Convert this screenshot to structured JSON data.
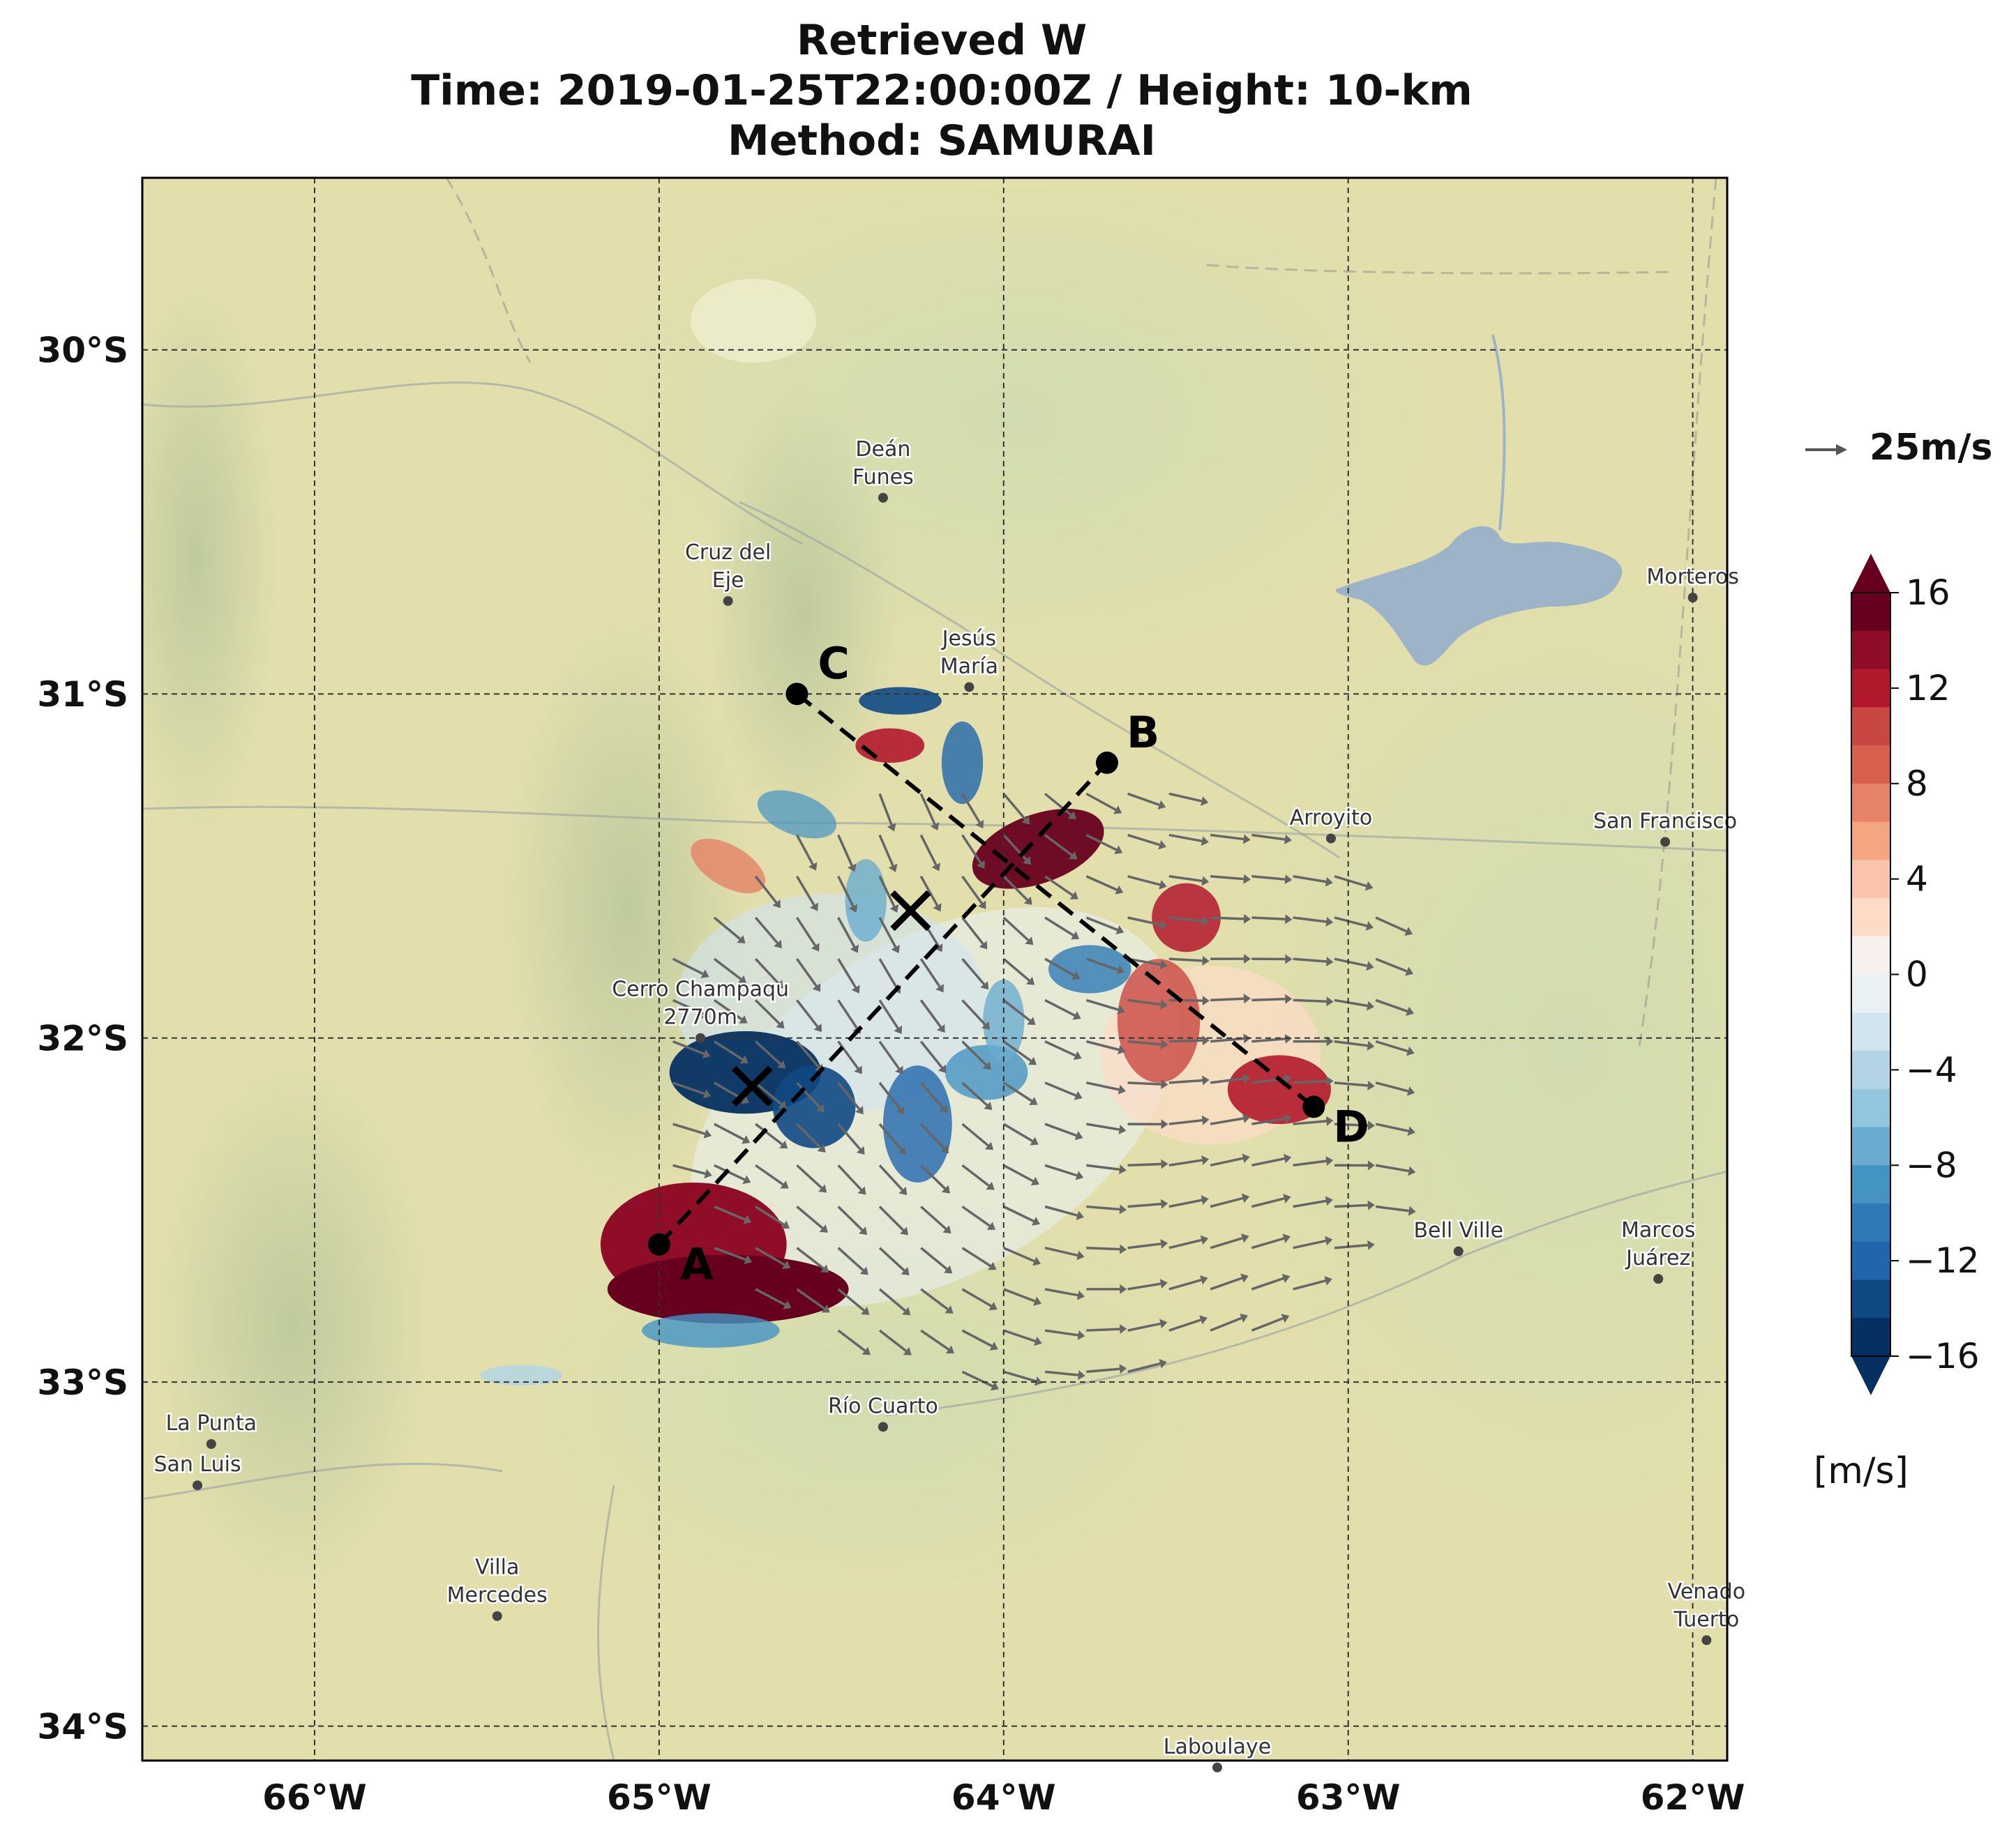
{
  "title_lines": [
    "Retrieved W",
    "Time: 2019-01-25T22:00:00Z / Height: 10-km",
    "Method: SAMURAI"
  ],
  "axes": {
    "lon_ticks": [
      "66°W",
      "65°W",
      "64°W",
      "63°W",
      "62°W"
    ],
    "lat_ticks": [
      "30°S",
      "31°S",
      "32°S",
      "33°S",
      "34°S"
    ],
    "lon_range": [
      -66.5,
      -61.9
    ],
    "lat_range": [
      -34.1,
      -29.5
    ],
    "gridlines": true
  },
  "cities": [
    {
      "label_lines": [
        "Deán",
        "Funes"
      ],
      "lon": -64.35,
      "lat": -30.43
    },
    {
      "label_lines": [
        "Cruz del",
        "Eje"
      ],
      "lon": -64.8,
      "lat": -30.73
    },
    {
      "label_lines": [
        "Jesús",
        "María"
      ],
      "lon": -64.1,
      "lat": -30.98
    },
    {
      "label_lines": [
        "Morteros"
      ],
      "lon": -62.0,
      "lat": -30.72
    },
    {
      "label_lines": [
        "Arroyito"
      ],
      "lon": -63.05,
      "lat": -31.42
    },
    {
      "label_lines": [
        "San Francisco"
      ],
      "lon": -62.08,
      "lat": -31.43
    },
    {
      "label_lines": [
        "Cerro Champaqu",
        "2770m"
      ],
      "lon": -64.88,
      "lat": -32.0
    },
    {
      "label_lines": [
        "Bell Ville"
      ],
      "lon": -62.68,
      "lat": -32.62
    },
    {
      "label_lines": [
        "Marcos",
        "Juárez"
      ],
      "lon": -62.1,
      "lat": -32.7
    },
    {
      "label_lines": [
        "Río Cuarto"
      ],
      "lon": -64.35,
      "lat": -33.13
    },
    {
      "label_lines": [
        "La Punta"
      ],
      "lon": -66.3,
      "lat": -33.18
    },
    {
      "label_lines": [
        "San Luis"
      ],
      "lon": -66.34,
      "lat": -33.3
    },
    {
      "label_lines": [
        "Villa",
        "Mercedes"
      ],
      "lon": -65.47,
      "lat": -33.68
    },
    {
      "label_lines": [
        "Venado",
        "Tuerto"
      ],
      "lon": -61.96,
      "lat": -33.75
    },
    {
      "label_lines": [
        "Laboulaye"
      ],
      "lon": -63.38,
      "lat": -34.12
    }
  ],
  "cross_sections": [
    {
      "label": "A",
      "lon": -65.0,
      "lat": -32.6
    },
    {
      "label": "B",
      "lon": -63.7,
      "lat": -31.2
    },
    {
      "label": "C",
      "lon": -64.6,
      "lat": -31.0
    },
    {
      "label": "D",
      "lon": -63.1,
      "lat": -32.2
    }
  ],
  "x_marks": [
    {
      "lon": -64.27,
      "lat": -31.63
    },
    {
      "lon": -64.73,
      "lat": -32.14
    }
  ],
  "quiver_key": {
    "label": "25m/s",
    "color": "#555555"
  },
  "colorbar": {
    "ticks": [
      "16",
      "12",
      "8",
      "4",
      "0",
      "−4",
      "−8",
      "−12",
      "−16"
    ],
    "unit": "[m/s]",
    "colors": [
      "#67001f",
      "#8f0d27",
      "#b2182b",
      "#c94741",
      "#d6604d",
      "#e58267",
      "#f4a582",
      "#f9c4a9",
      "#fddbc7",
      "#f7f0ed",
      "#eaf1f5",
      "#d1e5f0",
      "#b3d4e7",
      "#92c5de",
      "#6aacd0",
      "#4393c3",
      "#2f79b5",
      "#2166ac",
      "#0f4984",
      "#053061"
    ]
  }
}
